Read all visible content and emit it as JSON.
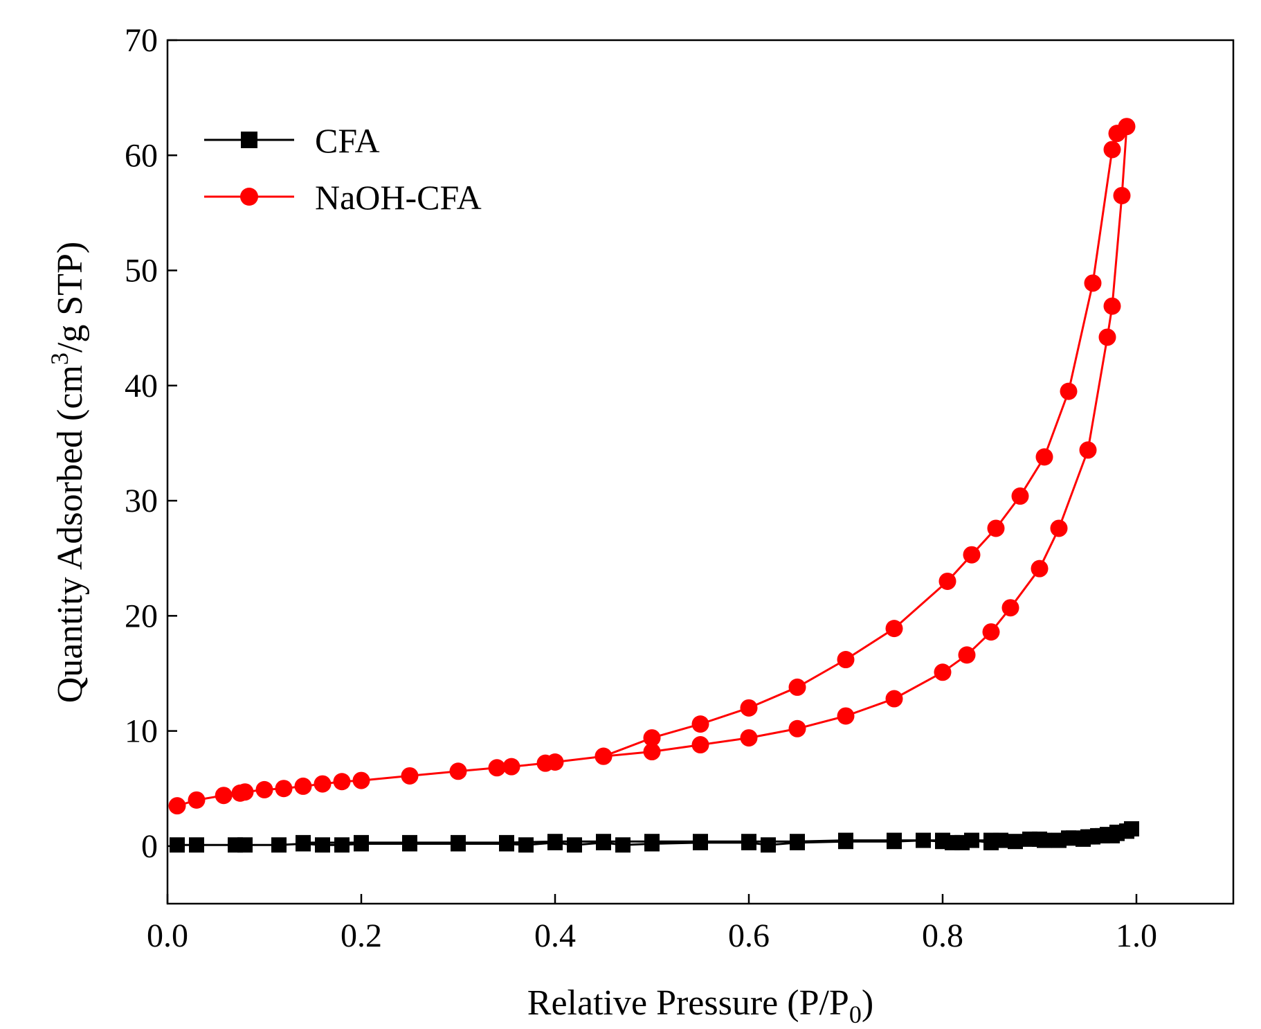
{
  "chart_data": {
    "type": "line",
    "title": "",
    "xlabel": {
      "main": "Relative Pressure (P/P",
      "sub": "0",
      "close": ")"
    },
    "ylabel": {
      "main": "Quantity Adsorbed (cm",
      "sup": "3",
      "rest": "/g STP)"
    },
    "xlim": [
      0.0,
      1.1
    ],
    "ylim": [
      -5,
      70
    ],
    "xticks": [
      0.0,
      0.2,
      0.4,
      0.6,
      0.8,
      1.0
    ],
    "xtick_labels": [
      "0.0",
      "0.2",
      "0.4",
      "0.6",
      "0.8",
      "1.0"
    ],
    "yticks": [
      0,
      10,
      20,
      30,
      40,
      50,
      60,
      70
    ],
    "ytick_labels": [
      "0",
      "10",
      "20",
      "30",
      "40",
      "50",
      "60",
      "70"
    ],
    "grid": false,
    "legend_position": "top-left",
    "series": [
      {
        "name": "CFA",
        "color": "#000000",
        "marker": "square",
        "x": [
          0.01,
          0.03,
          0.07,
          0.08,
          0.115,
          0.14,
          0.16,
          0.18,
          0.2,
          0.25,
          0.3,
          0.35,
          0.37,
          0.4,
          0.42,
          0.45,
          0.47,
          0.5,
          0.55,
          0.6,
          0.62,
          0.65,
          0.7,
          0.75,
          0.78,
          0.8,
          0.81,
          0.82,
          0.83,
          0.85,
          0.86,
          0.875,
          0.89,
          0.905,
          0.92,
          0.935,
          0.945,
          0.955,
          0.965,
          0.97,
          0.975,
          0.98,
          0.99,
          0.995,
          0.99,
          0.98,
          0.97,
          0.96,
          0.95,
          0.93,
          0.9,
          0.85,
          0.8,
          0.75,
          0.7,
          0.65,
          0.6,
          0.55,
          0.5,
          0.45,
          0.4,
          0.35,
          0.3,
          0.25,
          0.2,
          0.14
        ],
        "y": [
          0.1,
          0.1,
          0.1,
          0.1,
          0.1,
          0.2,
          0.1,
          0.1,
          0.2,
          0.2,
          0.2,
          0.2,
          0.1,
          0.3,
          0.1,
          0.3,
          0.1,
          0.2,
          0.3,
          0.3,
          0.1,
          0.3,
          0.4,
          0.4,
          0.5,
          0.4,
          0.3,
          0.3,
          0.5,
          0.3,
          0.5,
          0.4,
          0.6,
          0.5,
          0.5,
          0.7,
          0.6,
          0.8,
          0.9,
          1.0,
          0.9,
          1.2,
          1.3,
          1.5,
          1.3,
          1.1,
          1.0,
          0.9,
          0.8,
          0.7,
          0.6,
          0.5,
          0.5,
          0.5,
          0.5,
          0.4,
          0.4,
          0.4,
          0.4,
          0.4,
          0.4,
          0.3,
          0.3,
          0.3,
          0.3,
          0.3
        ]
      },
      {
        "name": "NaOH-CFA",
        "color": "#ff0000",
        "marker": "circle",
        "x": [
          0.01,
          0.03,
          0.058,
          0.075,
          0.08,
          0.1,
          0.12,
          0.14,
          0.16,
          0.18,
          0.2,
          0.25,
          0.3,
          0.34,
          0.355,
          0.39,
          0.4,
          0.45,
          0.5,
          0.55,
          0.6,
          0.65,
          0.7,
          0.75,
          0.8,
          0.825,
          0.85,
          0.87,
          0.9,
          0.92,
          0.95,
          0.97,
          0.975,
          0.985,
          0.99,
          0.98,
          0.975,
          0.955,
          0.93,
          0.905,
          0.88,
          0.855,
          0.83,
          0.805,
          0.75,
          0.7,
          0.65,
          0.6,
          0.55,
          0.5,
          0.45
        ],
        "y": [
          3.5,
          4.0,
          4.4,
          4.6,
          4.7,
          4.9,
          5.0,
          5.2,
          5.4,
          5.6,
          5.7,
          6.1,
          6.5,
          6.8,
          6.9,
          7.2,
          7.3,
          7.8,
          8.2,
          8.8,
          9.4,
          10.2,
          11.3,
          12.8,
          15.1,
          16.6,
          18.6,
          20.7,
          24.1,
          27.6,
          34.4,
          44.2,
          46.9,
          56.5,
          62.5,
          61.9,
          60.5,
          48.9,
          39.5,
          33.8,
          30.4,
          27.6,
          25.3,
          23.0,
          18.9,
          16.2,
          13.8,
          12.0,
          10.6,
          9.4,
          7.8
        ]
      }
    ]
  }
}
